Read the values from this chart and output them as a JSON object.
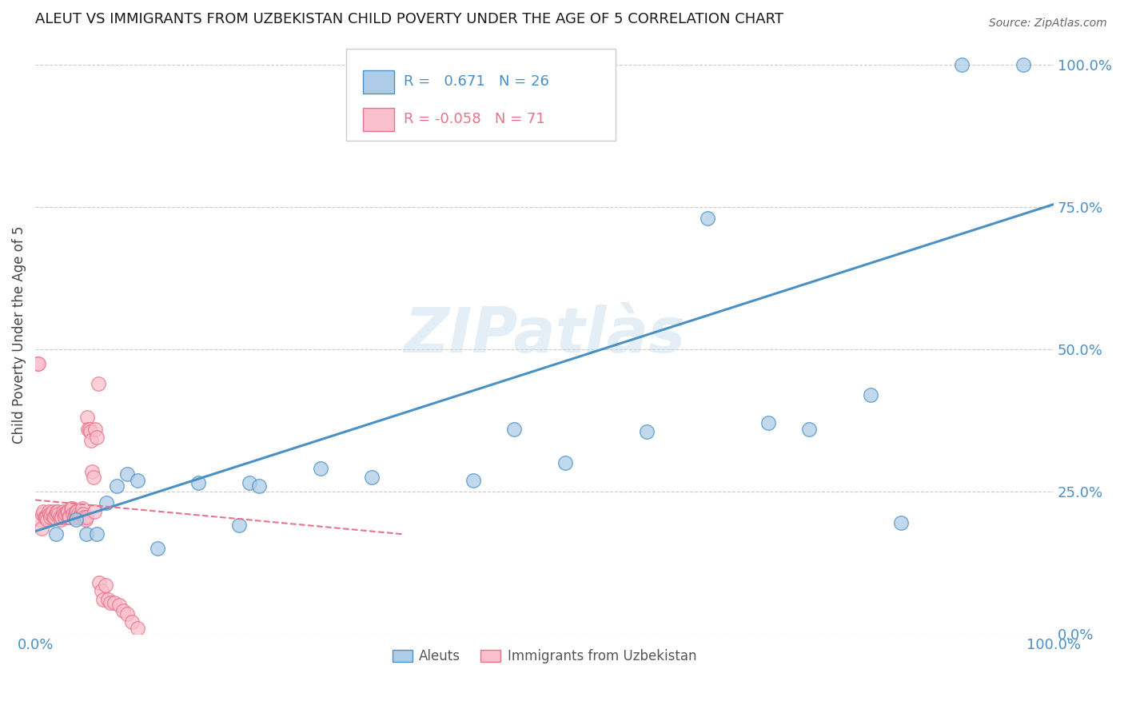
{
  "title": "ALEUT VS IMMIGRANTS FROM UZBEKISTAN CHILD POVERTY UNDER THE AGE OF 5 CORRELATION CHART",
  "source": "Source: ZipAtlas.com",
  "ylabel": "Child Poverty Under the Age of 5",
  "aleuts_R": 0.671,
  "aleuts_N": 26,
  "uzbekistan_R": -0.058,
  "uzbekistan_N": 71,
  "aleuts_color": "#aecce8",
  "uzbekistan_color": "#f9bfcc",
  "aleuts_line_color": "#4a90c4",
  "uzbekistan_line_color": "#e8748a",
  "watermark": "ZIPatlàs",
  "aleuts_x": [
    0.02,
    0.04,
    0.05,
    0.06,
    0.07,
    0.08,
    0.09,
    0.1,
    0.12,
    0.16,
    0.2,
    0.21,
    0.22,
    0.28,
    0.33,
    0.43,
    0.47,
    0.52,
    0.6,
    0.66,
    0.72,
    0.76,
    0.82,
    0.85,
    0.91,
    0.97
  ],
  "aleuts_y": [
    0.175,
    0.2,
    0.175,
    0.175,
    0.23,
    0.26,
    0.28,
    0.27,
    0.15,
    0.265,
    0.19,
    0.265,
    0.26,
    0.29,
    0.275,
    0.27,
    0.36,
    0.3,
    0.355,
    0.73,
    0.37,
    0.36,
    0.42,
    0.195,
    1.0,
    1.0
  ],
  "uzbekistan_x": [
    0.002,
    0.003,
    0.005,
    0.006,
    0.007,
    0.008,
    0.009,
    0.01,
    0.011,
    0.012,
    0.013,
    0.014,
    0.015,
    0.016,
    0.017,
    0.018,
    0.019,
    0.02,
    0.021,
    0.022,
    0.023,
    0.024,
    0.025,
    0.026,
    0.027,
    0.028,
    0.029,
    0.03,
    0.031,
    0.032,
    0.033,
    0.034,
    0.035,
    0.036,
    0.037,
    0.038,
    0.039,
    0.04,
    0.041,
    0.042,
    0.043,
    0.044,
    0.045,
    0.046,
    0.047,
    0.048,
    0.049,
    0.05,
    0.051,
    0.052,
    0.053,
    0.054,
    0.055,
    0.056,
    0.057,
    0.058,
    0.059,
    0.06,
    0.062,
    0.063,
    0.065,
    0.067,
    0.069,
    0.071,
    0.074,
    0.078,
    0.082,
    0.086,
    0.09,
    0.095,
    0.1
  ],
  "uzbekistan_y": [
    0.475,
    0.475,
    0.2,
    0.185,
    0.21,
    0.215,
    0.205,
    0.205,
    0.205,
    0.2,
    0.215,
    0.21,
    0.205,
    0.21,
    0.215,
    0.205,
    0.205,
    0.21,
    0.215,
    0.215,
    0.21,
    0.205,
    0.2,
    0.205,
    0.215,
    0.21,
    0.205,
    0.21,
    0.215,
    0.215,
    0.205,
    0.205,
    0.22,
    0.22,
    0.21,
    0.205,
    0.21,
    0.215,
    0.215,
    0.21,
    0.205,
    0.205,
    0.21,
    0.22,
    0.21,
    0.205,
    0.2,
    0.205,
    0.38,
    0.36,
    0.36,
    0.355,
    0.34,
    0.285,
    0.275,
    0.215,
    0.36,
    0.345,
    0.44,
    0.09,
    0.075,
    0.06,
    0.085,
    0.06,
    0.055,
    0.055,
    0.05,
    0.04,
    0.035,
    0.02,
    0.01
  ],
  "aleuts_line_x0": 0.0,
  "aleuts_line_x1": 1.0,
  "aleuts_line_y0": 0.18,
  "aleuts_line_y1": 0.755,
  "uzbek_line_x0": 0.0,
  "uzbek_line_x1": 0.36,
  "uzbek_line_y0": 0.235,
  "uzbek_line_y1": 0.175,
  "xlim": [
    0,
    1.0
  ],
  "ylim": [
    0,
    1.05
  ],
  "yticks": [
    0.0,
    0.25,
    0.5,
    0.75,
    1.0
  ],
  "ytick_labels": [
    "0.0%",
    "25.0%",
    "50.0%",
    "75.0%",
    "100.0%"
  ],
  "xticks": [
    0.0,
    1.0
  ],
  "xtick_labels": [
    "0.0%",
    "100.0%"
  ]
}
